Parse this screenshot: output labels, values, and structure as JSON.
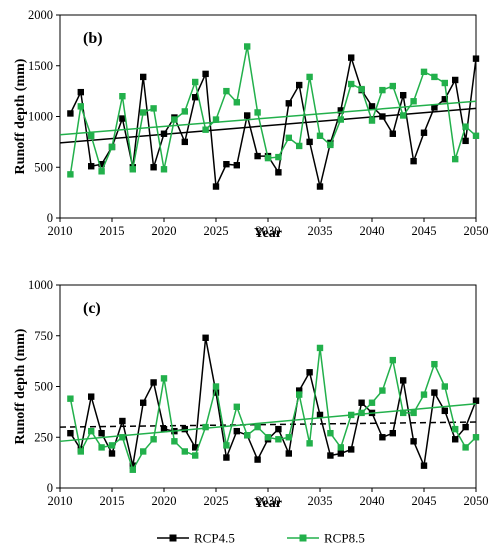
{
  "colors": {
    "rcp45": "#000000",
    "rcp85": "#22b04b",
    "axis": "#000000"
  },
  "legend": {
    "position": "bottom-center",
    "items": [
      {
        "label": "RCP4.5",
        "series": "rcp45"
      },
      {
        "label": "RCP8.5",
        "series": "rcp85"
      }
    ]
  },
  "chart_data": [
    {
      "type": "line",
      "panel_label": "(b)",
      "xlabel": "Year",
      "ylabel": "Runoff depth (mm)",
      "xlim": [
        2010,
        2050
      ],
      "ylim": [
        0,
        2000
      ],
      "xticks": [
        2010,
        2015,
        2020,
        2025,
        2030,
        2035,
        2040,
        2045,
        2050
      ],
      "yticks": [
        0,
        500,
        1000,
        1500,
        2000
      ],
      "grid": false,
      "x": [
        2011,
        2012,
        2013,
        2014,
        2015,
        2016,
        2017,
        2018,
        2019,
        2020,
        2021,
        2022,
        2023,
        2024,
        2025,
        2026,
        2027,
        2028,
        2029,
        2030,
        2031,
        2032,
        2033,
        2034,
        2035,
        2036,
        2037,
        2038,
        2039,
        2040,
        2041,
        2042,
        2043,
        2044,
        2045,
        2046,
        2047,
        2048,
        2049,
        2050
      ],
      "series": [
        {
          "name": "RCP4.5",
          "key": "rcp45",
          "values": [
            1030,
            1240,
            510,
            530,
            700,
            980,
            500,
            1390,
            500,
            830,
            990,
            750,
            1190,
            1420,
            310,
            530,
            520,
            1010,
            610,
            610,
            450,
            1130,
            1310,
            750,
            310,
            740,
            1060,
            1580,
            1260,
            1100,
            1000,
            830,
            1210,
            560,
            840,
            1090,
            1170,
            1360,
            760,
            1570
          ],
          "trend": [
            740,
            1080
          ],
          "trend_style": "solid"
        },
        {
          "name": "RCP8.5",
          "key": "rcp85",
          "values": [
            430,
            1100,
            810,
            460,
            700,
            1200,
            480,
            1040,
            1080,
            480,
            970,
            1050,
            1340,
            870,
            970,
            1250,
            1140,
            1690,
            1040,
            590,
            600,
            790,
            710,
            1390,
            810,
            720,
            970,
            1320,
            1270,
            960,
            1260,
            1300,
            1010,
            1150,
            1440,
            1390,
            1330,
            580,
            900,
            810
          ],
          "trend": [
            820,
            1150
          ],
          "trend_style": "solid"
        }
      ]
    },
    {
      "type": "line",
      "panel_label": "(c)",
      "xlabel": "Year",
      "ylabel": "Runoff depth (mm)",
      "xlim": [
        2010,
        2050
      ],
      "ylim": [
        0,
        1000
      ],
      "xticks": [
        2010,
        2015,
        2020,
        2025,
        2030,
        2035,
        2040,
        2045,
        2050
      ],
      "yticks": [
        0,
        250,
        500,
        750,
        1000
      ],
      "grid": false,
      "x": [
        2011,
        2012,
        2013,
        2014,
        2015,
        2016,
        2017,
        2018,
        2019,
        2020,
        2021,
        2022,
        2023,
        2024,
        2025,
        2026,
        2027,
        2028,
        2029,
        2030,
        2031,
        2032,
        2033,
        2034,
        2035,
        2036,
        2037,
        2038,
        2039,
        2040,
        2041,
        2042,
        2043,
        2044,
        2045,
        2046,
        2047,
        2048,
        2049,
        2050
      ],
      "series": [
        {
          "name": "RCP4.5",
          "key": "rcp45",
          "values": [
            270,
            190,
            450,
            270,
            170,
            330,
            110,
            420,
            520,
            290,
            280,
            290,
            200,
            740,
            470,
            150,
            280,
            260,
            140,
            240,
            290,
            170,
            480,
            570,
            360,
            160,
            170,
            190,
            420,
            370,
            250,
            270,
            530,
            230,
            110,
            470,
            380,
            240,
            300,
            430
          ],
          "trend": [
            300,
            325
          ],
          "trend_style": "dashed"
        },
        {
          "name": "RCP8.5",
          "key": "rcp85",
          "values": [
            440,
            180,
            280,
            200,
            210,
            250,
            90,
            180,
            240,
            540,
            230,
            180,
            160,
            300,
            500,
            210,
            400,
            260,
            300,
            250,
            240,
            250,
            460,
            220,
            690,
            270,
            200,
            360,
            370,
            420,
            480,
            630,
            370,
            370,
            460,
            610,
            500,
            290,
            200,
            250
          ],
          "trend": [
            230,
            415
          ],
          "trend_style": "solid"
        }
      ]
    }
  ]
}
